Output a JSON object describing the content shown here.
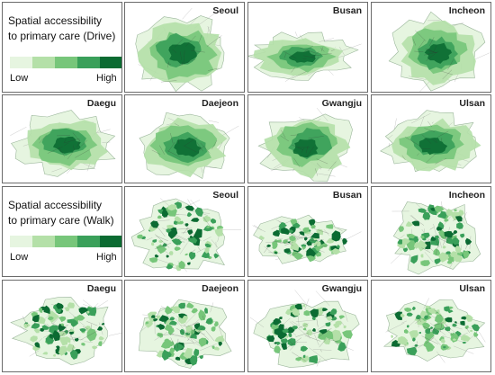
{
  "legend_drive": {
    "title_line1": "Spatial accessibility",
    "title_line2": "to primary care (Drive)",
    "low": "Low",
    "high": "High"
  },
  "legend_walk": {
    "title_line1": "Spatial accessibility",
    "title_line2": "to primary care (Walk)",
    "low": "Low",
    "high": "High"
  },
  "legend_colors": [
    "#e6f5e0",
    "#b4e0a8",
    "#77c67a",
    "#3aa05a",
    "#0b6b32"
  ],
  "cities_row1": [
    "Seoul",
    "Busan",
    "Incheon"
  ],
  "cities_row2": [
    "Daegu",
    "Daejeon",
    "Gwangju",
    "Ulsan"
  ],
  "cities_row3": [
    "Seoul",
    "Busan",
    "Incheon"
  ],
  "cities_row4": [
    "Daegu",
    "Daejeon",
    "Gwangju",
    "Ulsan"
  ]
}
